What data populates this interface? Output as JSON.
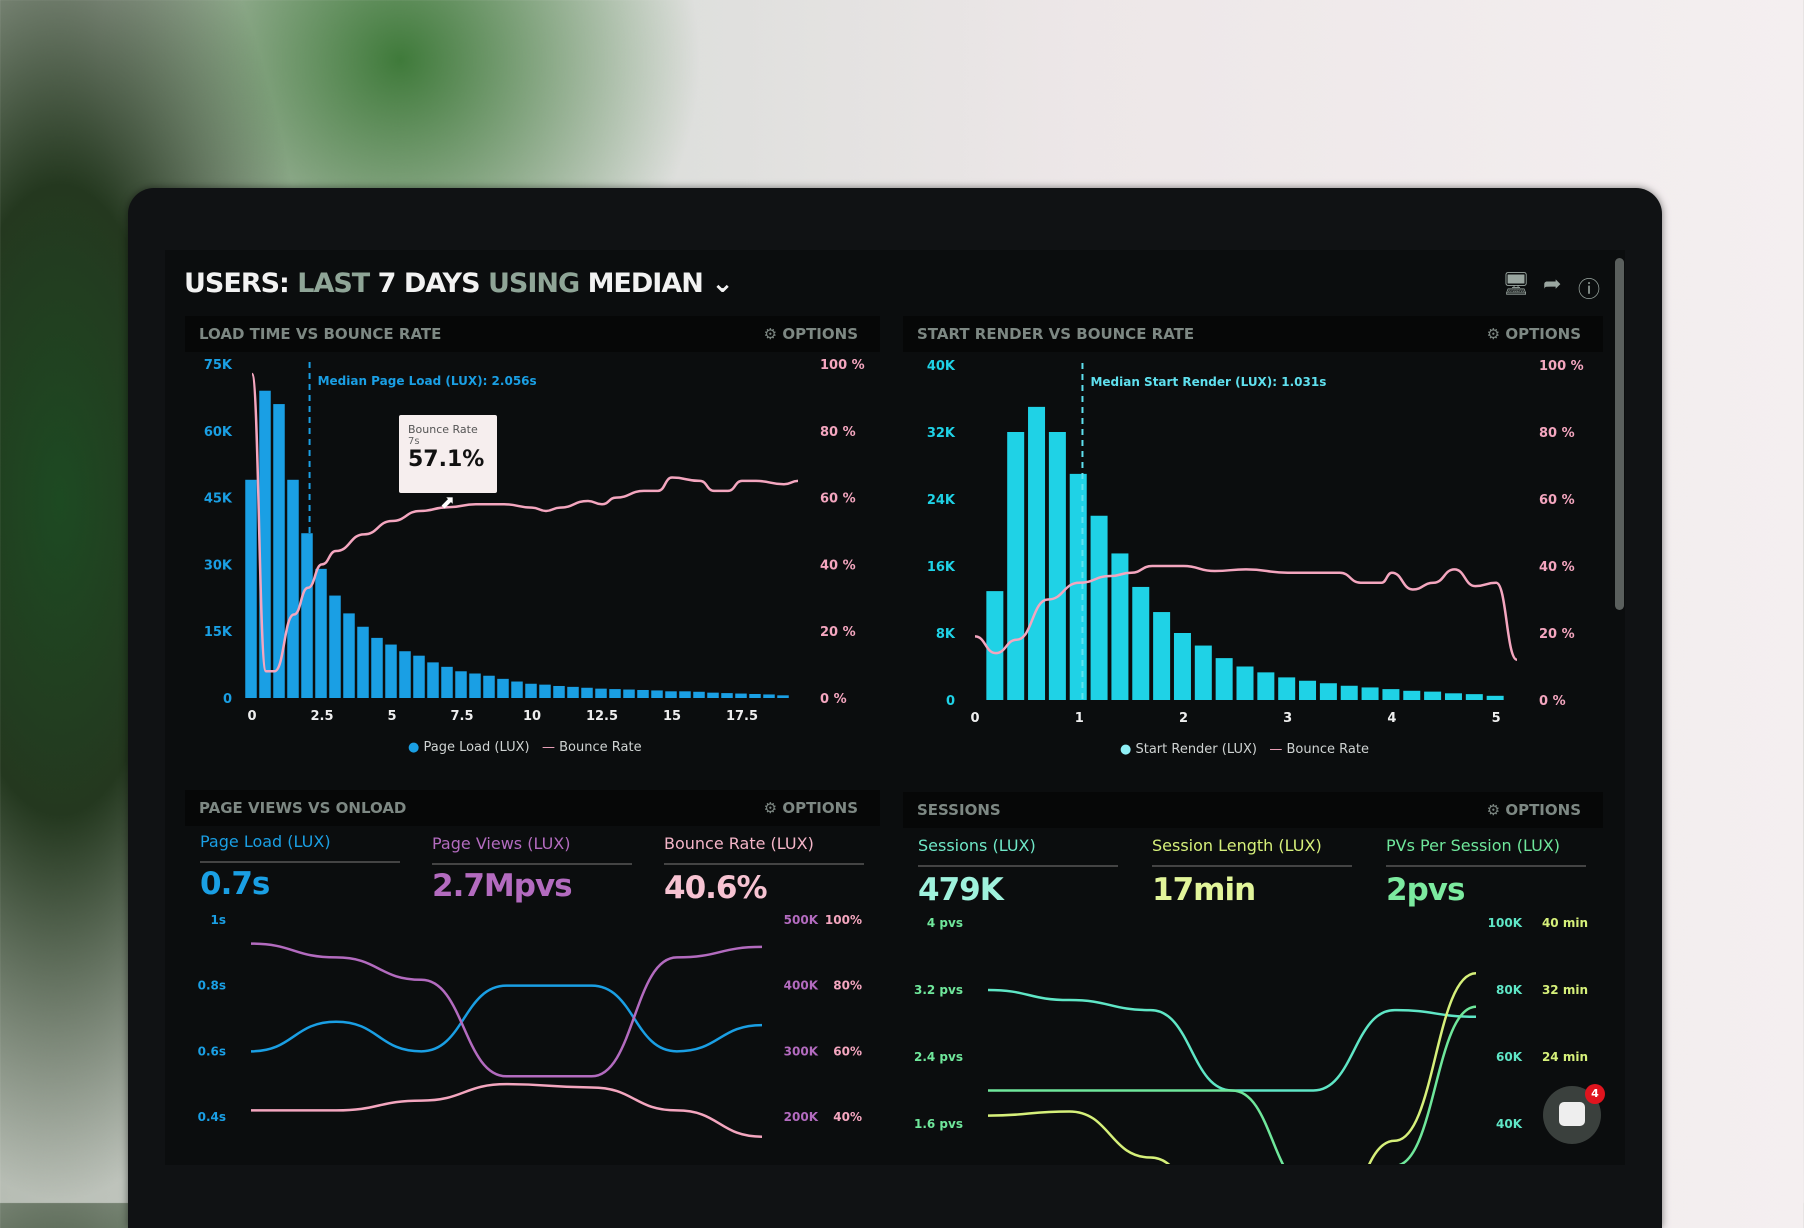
{
  "header": {
    "title_parts": [
      "USERS:",
      "LAST",
      "7 DAYS",
      "USING",
      "MEDIAN"
    ],
    "icons": [
      "monitor-icon",
      "share-icon",
      "help-icon"
    ]
  },
  "options_label": "OPTIONS",
  "colors": {
    "page_load": "#1a9fe4",
    "start_render": "#1fd2e6",
    "bounce": "#f4a6bf",
    "page_views": "#b36bbf",
    "sessions": "#5fe6c6",
    "session_length": "#d6f07a",
    "pvs": "#6fe79b"
  },
  "panels": {
    "load": {
      "title": "LOAD TIME VS BOUNCE RATE",
      "median": "Median Page Load (LUX): 2.056s",
      "tooltip": {
        "label": "Bounce Rate",
        "sub": "7s",
        "value": "57.1%"
      },
      "legend": [
        "Page Load (LUX)",
        "Bounce Rate"
      ]
    },
    "render": {
      "title": "START RENDER VS BOUNCE RATE",
      "median": "Median Start Render (LUX): 1.031s",
      "legend": [
        "Start Render (LUX)",
        "Bounce Rate"
      ]
    },
    "pageviews": {
      "title": "PAGE VIEWS VS ONLOAD",
      "metrics": [
        {
          "label": "Page Load (LUX)",
          "value": "0.7s"
        },
        {
          "label": "Page Views (LUX)",
          "value": "2.7Mpvs"
        },
        {
          "label": "Bounce Rate (LUX)",
          "value": "40.6%"
        }
      ]
    },
    "sessions": {
      "title": "SESSIONS",
      "metrics": [
        {
          "label": "Sessions (LUX)",
          "value": "479K"
        },
        {
          "label": "Session Length (LUX)",
          "value": "17min"
        },
        {
          "label": "PVs Per Session (LUX)",
          "value": "2pvs"
        }
      ]
    }
  },
  "chat": {
    "badge": "4"
  },
  "chart_data": [
    {
      "type": "bar",
      "title": "LOAD TIME VS BOUNCE RATE",
      "xticks": [
        "0",
        "2.5",
        "5",
        "7.5",
        "10",
        "12.5",
        "15",
        "17.5"
      ],
      "xlim": [
        0,
        19.5
      ],
      "yticks_left": [
        "0",
        "15K",
        "30K",
        "45K",
        "60K",
        "75K"
      ],
      "ylim_left": [
        0,
        75000
      ],
      "yticks_right": [
        "0 %",
        "20 %",
        "40 %",
        "60 %",
        "80 %",
        "100 %"
      ],
      "ylim_right": [
        0,
        100
      ],
      "median": 2.056,
      "bars": {
        "name": "Page Load (LUX)",
        "x": [
          0,
          0.5,
          1,
          1.5,
          2,
          2.5,
          3,
          3.5,
          4,
          4.5,
          5,
          5.5,
          6,
          6.5,
          7,
          7.5,
          8,
          8.5,
          9,
          9.5,
          10,
          10.5,
          11,
          11.5,
          12,
          12.5,
          13,
          13.5,
          14,
          14.5,
          15,
          15.5,
          16,
          16.5,
          17,
          17.5,
          18,
          18.5,
          19
        ],
        "values": [
          49000,
          69000,
          66000,
          49000,
          37000,
          29000,
          23000,
          19000,
          16000,
          13500,
          12000,
          10500,
          9500,
          8000,
          7000,
          6000,
          5500,
          5000,
          4300,
          3700,
          3200,
          3000,
          2700,
          2500,
          2300,
          2100,
          2000,
          1900,
          1800,
          1700,
          1500,
          1500,
          1400,
          1200,
          1100,
          1000,
          900,
          800,
          600
        ]
      },
      "line": {
        "name": "Bounce Rate",
        "x": [
          0,
          0.5,
          0.8,
          1.5,
          2,
          2.5,
          3,
          4,
          5,
          6,
          7,
          8,
          9,
          10,
          10.5,
          11,
          12,
          12.5,
          13,
          14,
          14.5,
          15,
          16,
          16.5,
          17,
          17.5,
          18,
          19,
          19.5
        ],
        "values": [
          97,
          8,
          8,
          25,
          33,
          40,
          44,
          49,
          53,
          56,
          57.1,
          58,
          58,
          57,
          56,
          57,
          59,
          58,
          60,
          62,
          62,
          66,
          65,
          62,
          62,
          65,
          65,
          64,
          65
        ]
      }
    },
    {
      "type": "bar",
      "title": "START RENDER VS BOUNCE RATE",
      "xticks": [
        "0",
        "1",
        "2",
        "3",
        "4",
        "5"
      ],
      "xlim": [
        0,
        5.2
      ],
      "yticks_left": [
        "0",
        "8K",
        "16K",
        "24K",
        "32K",
        "40K"
      ],
      "ylim_left": [
        0,
        40000
      ],
      "yticks_right": [
        "0 %",
        "20 %",
        "40 %",
        "60 %",
        "80 %",
        "100 %"
      ],
      "ylim_right": [
        0,
        100
      ],
      "median": 1.031,
      "bars": {
        "name": "Start Render (LUX)",
        "x": [
          0.2,
          0.4,
          0.6,
          0.8,
          1.0,
          1.2,
          1.4,
          1.6,
          1.8,
          2.0,
          2.2,
          2.4,
          2.6,
          2.8,
          3.0,
          3.2,
          3.4,
          3.6,
          3.8,
          4.0,
          4.2,
          4.4,
          4.6,
          4.8,
          5.0
        ],
        "values": [
          13000,
          32000,
          35000,
          32000,
          27000,
          22000,
          17500,
          13500,
          10500,
          8000,
          6500,
          5000,
          4000,
          3300,
          2700,
          2300,
          2000,
          1700,
          1500,
          1300,
          1100,
          1000,
          800,
          700,
          500
        ]
      },
      "line": {
        "name": "Bounce Rate",
        "x": [
          0,
          0.2,
          0.4,
          0.7,
          1,
          1.3,
          1.5,
          1.7,
          2,
          2.3,
          2.6,
          3,
          3.5,
          3.7,
          3.9,
          4,
          4.2,
          4.4,
          4.6,
          4.8,
          5,
          5.2
        ],
        "values": [
          19,
          14,
          18,
          30,
          35,
          37,
          38,
          40,
          40,
          38.5,
          39,
          38,
          38,
          35,
          35,
          38,
          33,
          35,
          39,
          34,
          35,
          12
        ]
      }
    },
    {
      "type": "line",
      "title": "PAGE VIEWS VS ONLOAD",
      "yticks_left": [
        "0.4s",
        "0.6s",
        "0.8s",
        "1s"
      ],
      "ylim_left": [
        0.4,
        1.0
      ],
      "yticks_right_a": [
        "200K",
        "300K",
        "400K",
        "500K"
      ],
      "ylim_right_a": [
        200000,
        500000
      ],
      "yticks_right_b": [
        "40%",
        "60%",
        "80%",
        "100%"
      ],
      "ylim_right_b": [
        40,
        100
      ],
      "series": [
        {
          "name": "Page Load (LUX)",
          "axis": "left",
          "values": [
            0.6,
            0.69,
            0.6,
            0.8,
            0.8,
            0.6,
            0.68
          ]
        },
        {
          "name": "Page Views (LUX)",
          "axis": "right_a",
          "values": [
            464000,
            443000,
            409000,
            262000,
            262000,
            443000,
            459000
          ]
        },
        {
          "name": "Bounce Rate (LUX)",
          "axis": "right_b",
          "values": [
            42,
            42,
            45,
            50,
            49,
            42,
            34
          ]
        }
      ]
    },
    {
      "type": "line",
      "title": "SESSIONS",
      "yticks_left": [
        "1.6 pvs",
        "2.4 pvs",
        "3.2 pvs",
        "4 pvs"
      ],
      "ylim_left": [
        1.6,
        4
      ],
      "yticks_right_a": [
        "40K",
        "60K",
        "80K",
        "100K"
      ],
      "ylim_right_a": [
        40000,
        100000
      ],
      "yticks_right_b": [
        "24 min",
        "32 min",
        "40 min"
      ],
      "ylim_right_b": [
        16,
        40
      ],
      "series": [
        {
          "name": "Sessions (LUX)",
          "axis": "right_a",
          "values": [
            80000,
            77000,
            74000,
            50000,
            50000,
            74000,
            72000
          ]
        },
        {
          "name": "Session Length (LUX)",
          "axis": "right_b",
          "values": [
            17,
            17.5,
            12,
            2,
            -2,
            14,
            34
          ]
        },
        {
          "name": "PVs Per Session (LUX)",
          "axis": "left",
          "values": [
            2.0,
            2.0,
            2.0,
            2.0,
            0.8,
            1.1,
            3.0
          ]
        }
      ]
    }
  ]
}
